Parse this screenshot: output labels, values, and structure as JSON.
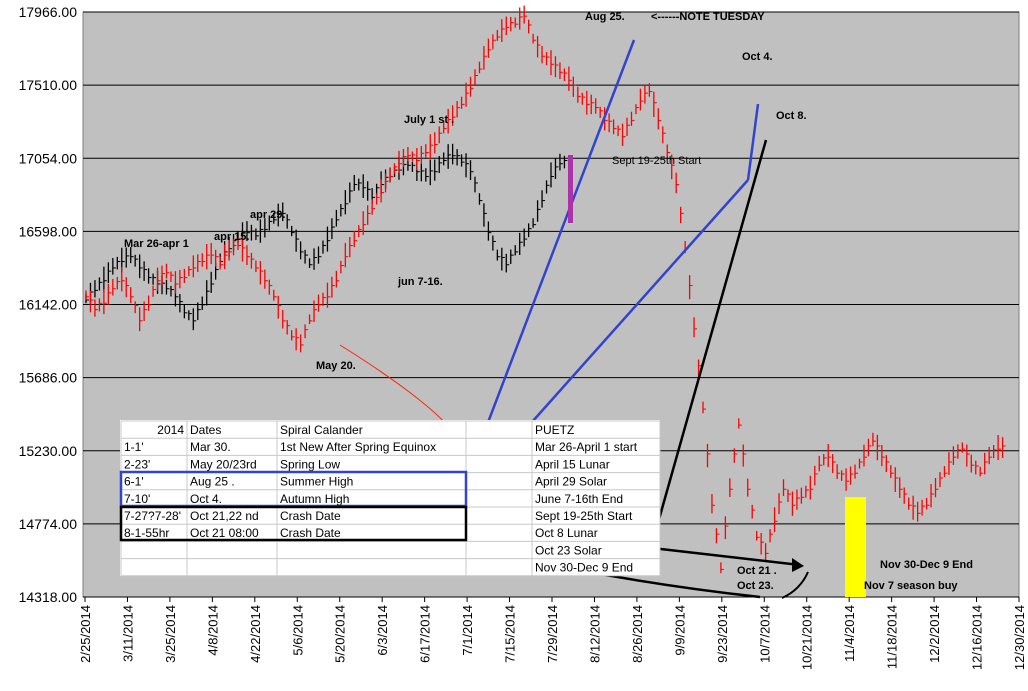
{
  "chart_data": {
    "type": "ohlc",
    "title": "",
    "xlabel": "",
    "ylabel": "",
    "ylim": [
      14318,
      17966
    ],
    "y_ticks": [
      "17966.00",
      "17510.00",
      "17054.00",
      "16598.00",
      "16142.00",
      "15686.00",
      "15230.00",
      "14774.00",
      "14318.00"
    ],
    "y_tick_values": [
      17966,
      17510,
      17054,
      16598,
      16142,
      15686,
      15230,
      14774,
      14318
    ],
    "x_ticks": [
      "2/25/2014",
      "3/11/2014",
      "3/25/2014",
      "4/8/2014",
      "4/22/2014",
      "5/6/2014",
      "5/20/2014",
      "6/3/2014",
      "6/17/2014",
      "7/1/2014",
      "7/15/2014",
      "7/29/2014",
      "8/12/2014",
      "8/26/2014",
      "9/9/2014",
      "9/23/2014",
      "10/7/2014",
      "10/21/2014",
      "11/4/2014",
      "11/18/2014",
      "12/2/2014",
      "12/16/2014",
      "12/30/2014"
    ],
    "grid": true,
    "series": [
      {
        "color": "#000000",
        "points": [
          [
            0,
            16180
          ],
          [
            2,
            16240
          ],
          [
            4,
            16300
          ],
          [
            6,
            16380
          ],
          [
            8,
            16420
          ],
          [
            10,
            16450
          ],
          [
            12,
            16380
          ],
          [
            14,
            16320
          ],
          [
            16,
            16280
          ],
          [
            18,
            16250
          ],
          [
            20,
            16200
          ],
          [
            22,
            16100
          ],
          [
            24,
            16050
          ],
          [
            26,
            16150
          ],
          [
            28,
            16280
          ],
          [
            30,
            16420
          ],
          [
            32,
            16500
          ],
          [
            34,
            16560
          ],
          [
            36,
            16600
          ],
          [
            38,
            16580
          ],
          [
            40,
            16620
          ],
          [
            42,
            16680
          ],
          [
            44,
            16720
          ],
          [
            46,
            16600
          ],
          [
            48,
            16480
          ],
          [
            50,
            16400
          ],
          [
            52,
            16450
          ],
          [
            54,
            16550
          ],
          [
            56,
            16680
          ],
          [
            58,
            16780
          ],
          [
            60,
            16900
          ],
          [
            62,
            16880
          ],
          [
            64,
            16820
          ],
          [
            66,
            16900
          ],
          [
            68,
            16950
          ],
          [
            70,
            16990
          ],
          [
            72,
            17020
          ],
          [
            74,
            16980
          ],
          [
            76,
            16950
          ],
          [
            78,
            16980
          ],
          [
            80,
            17050
          ],
          [
            82,
            17080
          ],
          [
            84,
            17040
          ],
          [
            86,
            16980
          ],
          [
            88,
            16800
          ],
          [
            90,
            16600
          ],
          [
            92,
            16450
          ],
          [
            94,
            16400
          ],
          [
            96,
            16480
          ],
          [
            98,
            16560
          ],
          [
            100,
            16650
          ],
          [
            102,
            16800
          ],
          [
            104,
            16950
          ],
          [
            106,
            17030
          ]
        ]
      },
      {
        "color": "#ff0000",
        "points": [
          [
            0,
            16200
          ],
          [
            2,
            16120
          ],
          [
            4,
            16160
          ],
          [
            6,
            16250
          ],
          [
            8,
            16300
          ],
          [
            10,
            16200
          ],
          [
            12,
            16050
          ],
          [
            14,
            16150
          ],
          [
            16,
            16300
          ],
          [
            18,
            16350
          ],
          [
            20,
            16280
          ],
          [
            22,
            16320
          ],
          [
            24,
            16380
          ],
          [
            26,
            16420
          ],
          [
            28,
            16460
          ],
          [
            30,
            16400
          ],
          [
            32,
            16480
          ],
          [
            34,
            16520
          ],
          [
            36,
            16450
          ],
          [
            38,
            16380
          ],
          [
            40,
            16300
          ],
          [
            42,
            16200
          ],
          [
            44,
            16050
          ],
          [
            46,
            15950
          ],
          [
            48,
            15900
          ],
          [
            50,
            16050
          ],
          [
            52,
            16150
          ],
          [
            54,
            16200
          ],
          [
            56,
            16300
          ],
          [
            58,
            16450
          ],
          [
            60,
            16550
          ],
          [
            62,
            16650
          ],
          [
            64,
            16750
          ],
          [
            66,
            16850
          ],
          [
            68,
            16950
          ],
          [
            70,
            17030
          ],
          [
            72,
            17080
          ],
          [
            74,
            17050
          ],
          [
            76,
            17100
          ],
          [
            78,
            17150
          ],
          [
            80,
            17250
          ],
          [
            82,
            17320
          ],
          [
            84,
            17400
          ],
          [
            86,
            17500
          ],
          [
            88,
            17620
          ],
          [
            90,
            17740
          ],
          [
            92,
            17820
          ],
          [
            94,
            17880
          ],
          [
            96,
            17900
          ],
          [
            98,
            17950
          ],
          [
            100,
            17800
          ],
          [
            102,
            17700
          ],
          [
            104,
            17650
          ],
          [
            106,
            17600
          ],
          [
            108,
            17550
          ],
          [
            110,
            17450
          ],
          [
            112,
            17400
          ],
          [
            114,
            17380
          ],
          [
            116,
            17300
          ],
          [
            118,
            17250
          ],
          [
            120,
            17200
          ],
          [
            122,
            17300
          ],
          [
            124,
            17420
          ],
          [
            126,
            17480
          ],
          [
            128,
            17300
          ],
          [
            130,
            17100
          ],
          [
            132,
            16900
          ],
          [
            134,
            16500
          ],
          [
            136,
            16000
          ],
          [
            138,
            15500
          ],
          [
            140,
            14900
          ],
          [
            142,
            14500
          ],
          [
            144,
            15000
          ],
          [
            146,
            15400
          ],
          [
            148,
            15000
          ],
          [
            150,
            14700
          ],
          [
            152,
            14600
          ],
          [
            154,
            14800
          ],
          [
            156,
            15000
          ],
          [
            158,
            14900
          ],
          [
            160,
            14950
          ],
          [
            162,
            15000
          ],
          [
            164,
            15150
          ],
          [
            166,
            15200
          ],
          [
            168,
            15100
          ],
          [
            170,
            15050
          ],
          [
            172,
            15100
          ],
          [
            174,
            15200
          ],
          [
            176,
            15300
          ],
          [
            178,
            15200
          ],
          [
            180,
            15100
          ],
          [
            182,
            15000
          ],
          [
            184,
            14900
          ],
          [
            186,
            14850
          ],
          [
            188,
            14900
          ],
          [
            190,
            15000
          ],
          [
            192,
            15100
          ],
          [
            194,
            15200
          ],
          [
            196,
            15250
          ],
          [
            198,
            15150
          ],
          [
            200,
            15100
          ],
          [
            202,
            15200
          ],
          [
            204,
            15250
          ]
        ]
      }
    ],
    "annotations": [
      {
        "text": "Aug 25.",
        "bold": true
      },
      {
        "text": "<------NOTE TUESDAY",
        "bold": true
      },
      {
        "text": "Oct 4.",
        "bold": true
      },
      {
        "text": "Oct 8.",
        "bold": true
      },
      {
        "text": "July 1 st .",
        "bold": true
      },
      {
        "text": "Sept 19-25th Start",
        "bold": false
      },
      {
        "text": "apr 29.",
        "bold": true
      },
      {
        "text": "Mar 26-apr 1",
        "bold": true
      },
      {
        "text": "apr 15.",
        "bold": true
      },
      {
        "text": "jun 7-16.",
        "bold": true
      },
      {
        "text": "May 20.",
        "bold": true
      },
      {
        "text": "Oct 21 .",
        "bold": true
      },
      {
        "text": "Oct 23.",
        "bold": true
      },
      {
        "text": "Nov 30-Dec 9 End",
        "bold": true
      },
      {
        "text": "Nov 7 season buy",
        "bold": true
      }
    ],
    "table": {
      "header": [
        "2014",
        "Dates",
        "Spiral Calander",
        "",
        "PUETZ"
      ],
      "rows": [
        [
          "1-1'",
          "Mar 30.",
          "1st New After Spring Equinox",
          "",
          "Mar 26-April 1 start"
        ],
        [
          "2-23'",
          "May 20/23rd",
          "Spring Low",
          "",
          "April 15 Lunar"
        ],
        [
          "6-1'",
          "Aug 25 .",
          "Summer High",
          "",
          "April 29 Solar"
        ],
        [
          "7-10'",
          "Oct 4.",
          "Autumn High",
          "",
          "June 7-16th End"
        ],
        [
          "7-27?7-28'",
          "Oct 21,22 nd",
          "Crash Date",
          "",
          "Sept 19-25th Start"
        ],
        [
          "8-1-55hr",
          "Oct 21 08:00",
          "Crash Date",
          "",
          "Oct 8 Lunar"
        ],
        [
          "",
          "",
          "",
          "",
          "Oct 23 Solar"
        ],
        [
          "",
          "",
          "",
          "",
          "Nov 30-Dec 9 End"
        ]
      ]
    }
  }
}
